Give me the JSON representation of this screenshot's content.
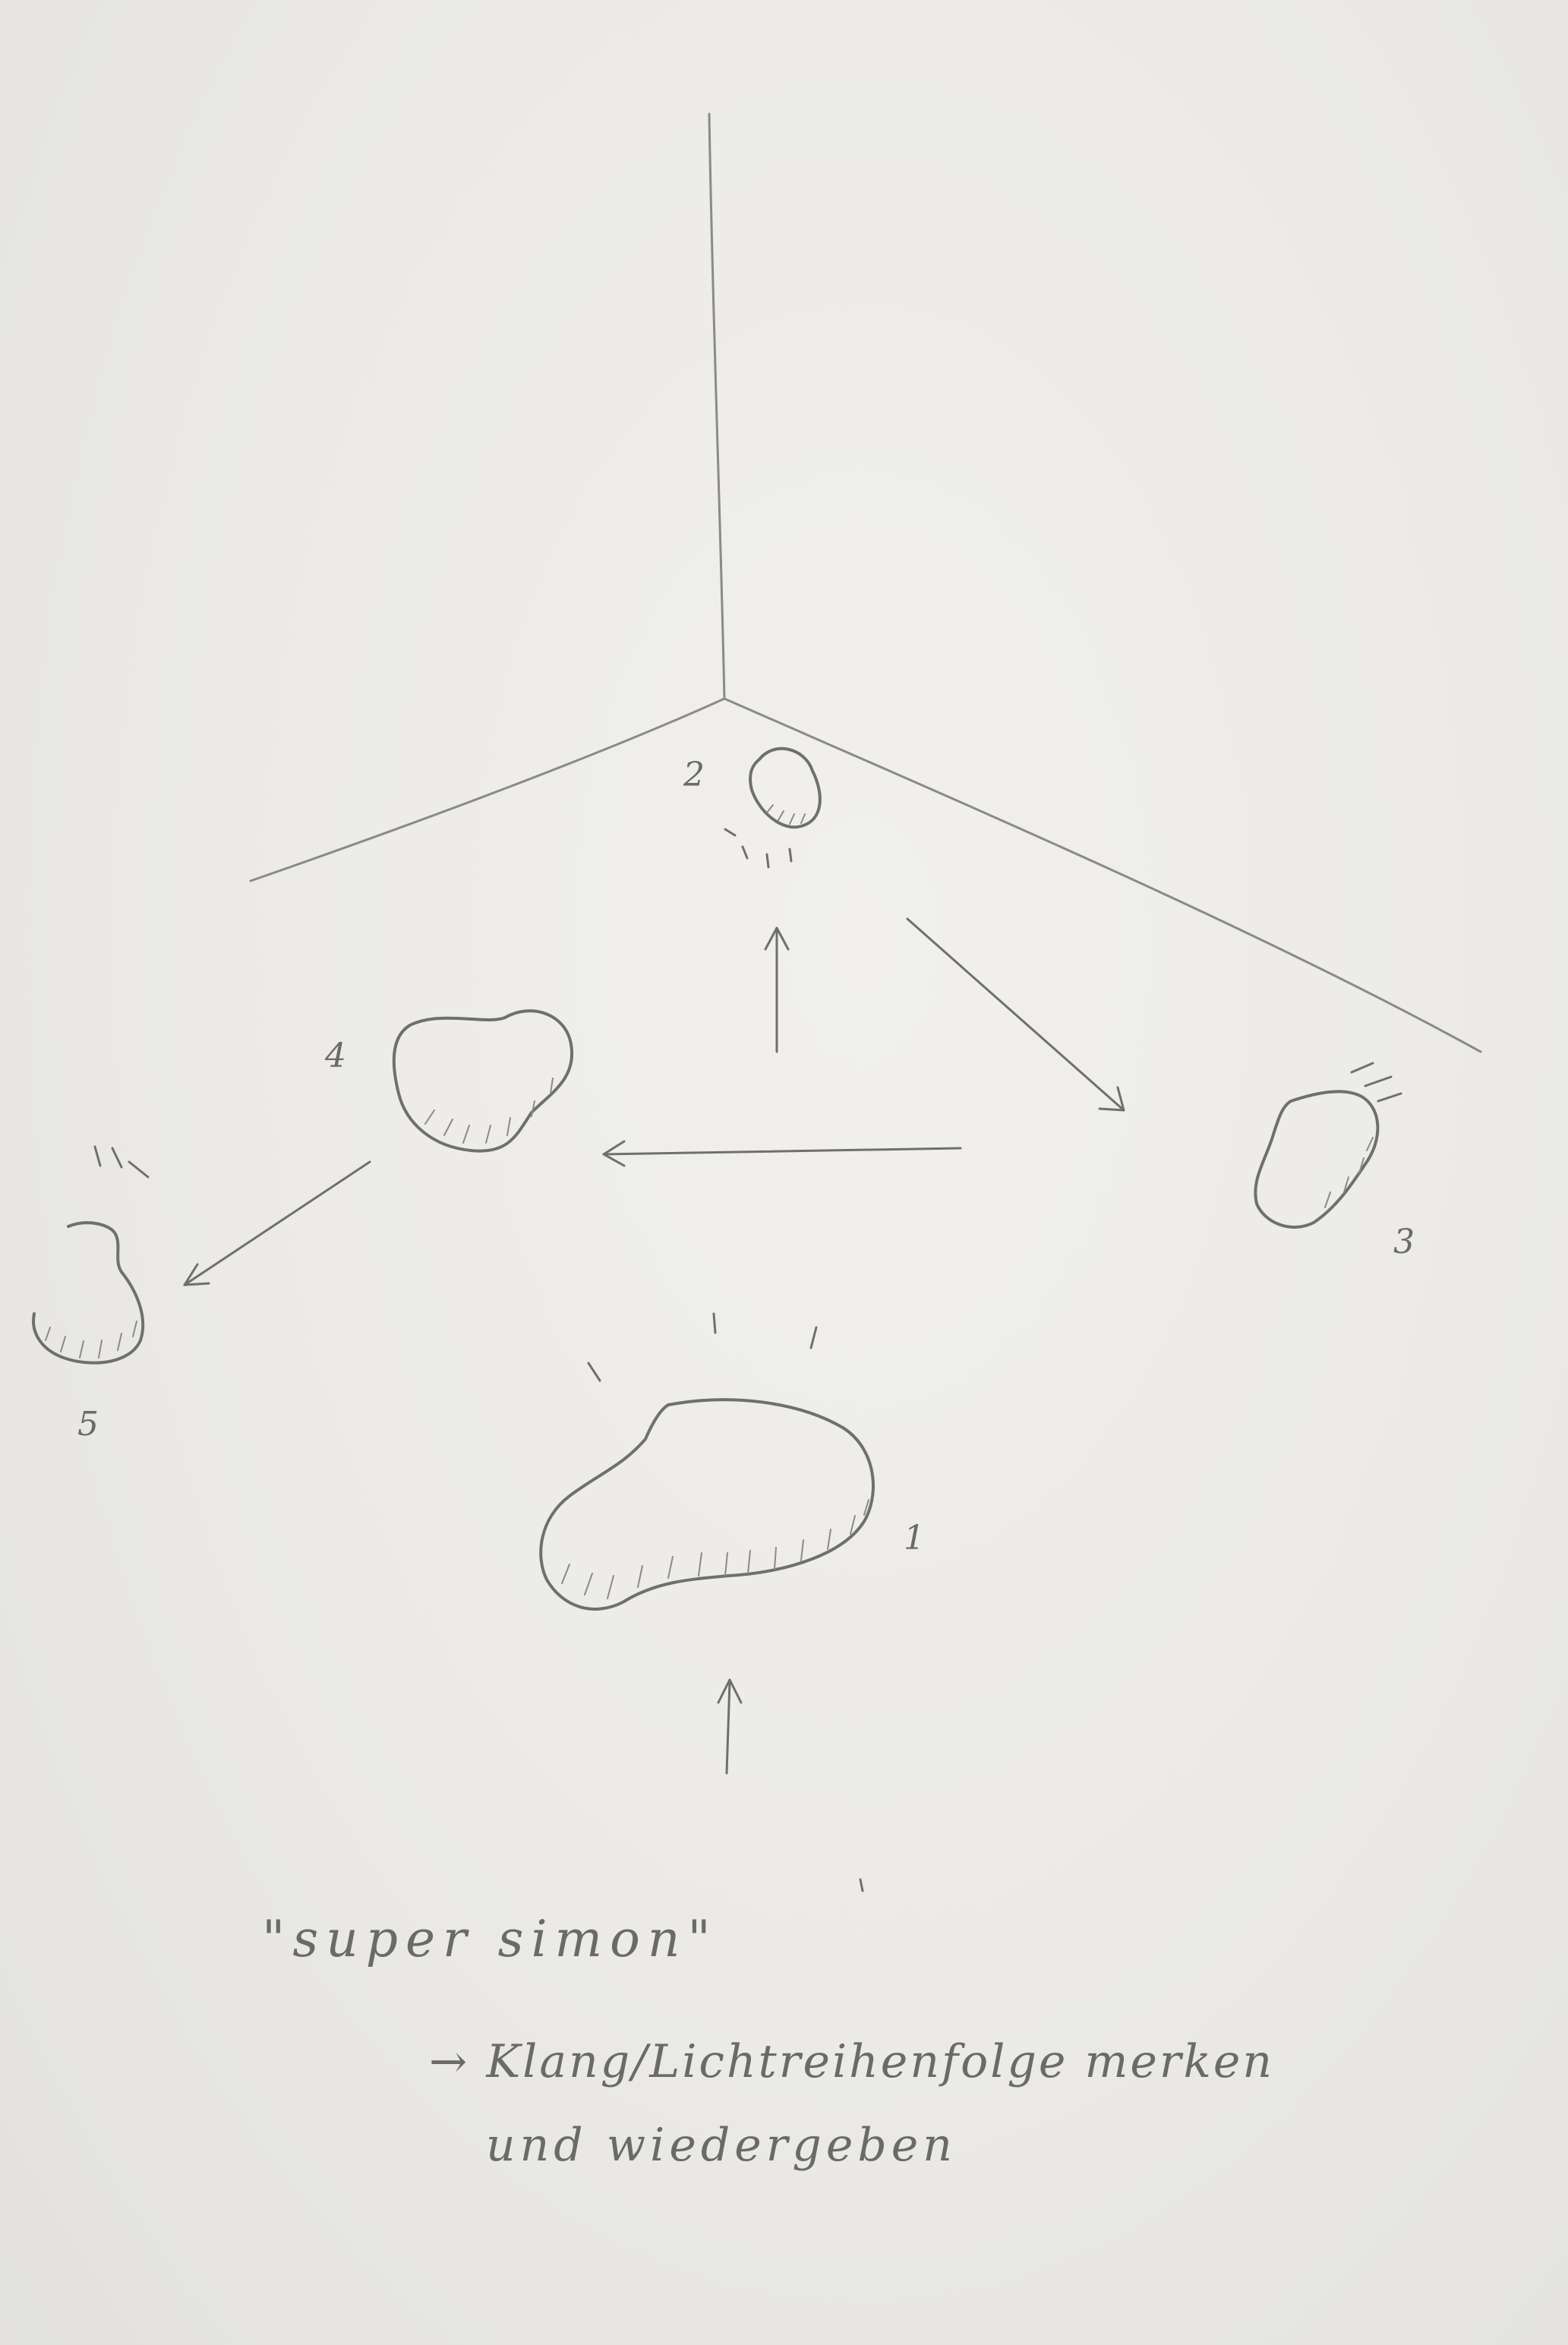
{
  "stones": [
    {
      "label": "1"
    },
    {
      "label": "2"
    },
    {
      "label": "3"
    },
    {
      "label": "4"
    },
    {
      "label": "5"
    }
  ],
  "caption": {
    "title": "\"super simon\"",
    "line1": "→ Klang/Lichtreihenfolge merken",
    "line2": "und wiedergeben"
  }
}
